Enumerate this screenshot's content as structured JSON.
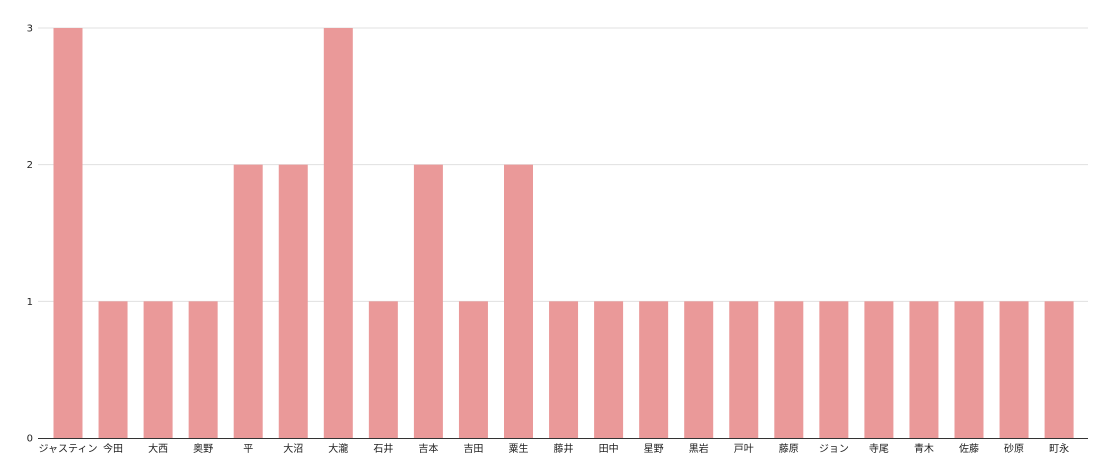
{
  "chart_data": {
    "type": "bar",
    "categories": [
      "ジャスティン",
      "今田",
      "大西",
      "奥野",
      "平",
      "大沼",
      "大瀧",
      "石井",
      "吉本",
      "吉田",
      "粟生",
      "藤井",
      "田中",
      "星野",
      "黒岩",
      "戸叶",
      "藤原",
      "ジョン",
      "寺尾",
      "青木",
      "佐藤",
      "砂原",
      "町永"
    ],
    "values": [
      3,
      1,
      1,
      1,
      2,
      2,
      3,
      1,
      2,
      1,
      2,
      1,
      1,
      1,
      1,
      1,
      1,
      1,
      1,
      1,
      1,
      1,
      1
    ],
    "ylim": [
      0,
      3
    ],
    "yticks": [
      "0",
      "1",
      "2",
      "3"
    ],
    "grid": true,
    "bar_color": "#ea9999",
    "grid_color": "#e0e0e0",
    "axis_color": "#333333"
  }
}
